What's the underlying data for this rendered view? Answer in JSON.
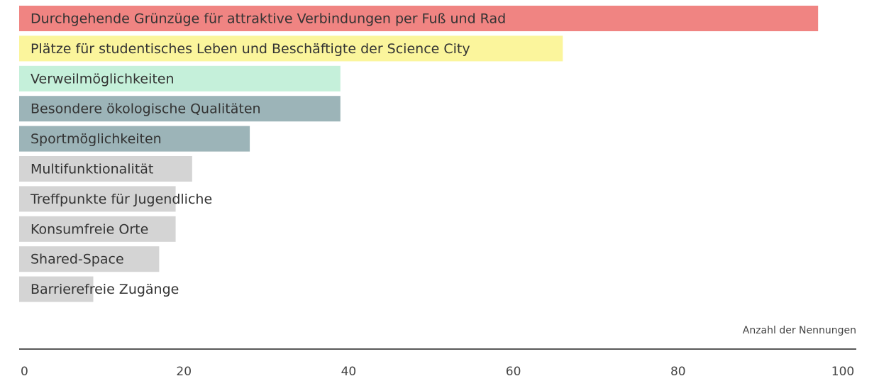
{
  "chart_data": {
    "type": "bar",
    "orientation": "horizontal",
    "categories": [
      "Durchgehende Grünzüge für attraktive Verbindungen per Fuß und Rad",
      "Plätze für studentisches Leben und Beschäftigte der Science City",
      "Verweilmöglichkeiten",
      "Besondere ökologische Qualitäten",
      "Sportmöglichkeiten",
      "Multifunktionalität",
      "Treffpunkte für Jugendliche",
      "Konsumfreie Orte",
      "Shared-Space",
      "Barrierefreie Zugänge"
    ],
    "values": [
      97,
      66,
      39,
      39,
      28,
      21,
      19,
      19,
      17,
      9
    ],
    "colors": [
      "#f08482",
      "#fbf59c",
      "#c5f0da",
      "#9cb4b8",
      "#9cb4b8",
      "#d4d4d4",
      "#d4d4d4",
      "#d4d4d4",
      "#d4d4d4",
      "#d4d4d4"
    ],
    "x_label": "Anzahl der Nennungen",
    "xlim": [
      0,
      100
    ],
    "xticks": [
      0,
      20,
      40,
      60,
      80,
      100
    ]
  }
}
